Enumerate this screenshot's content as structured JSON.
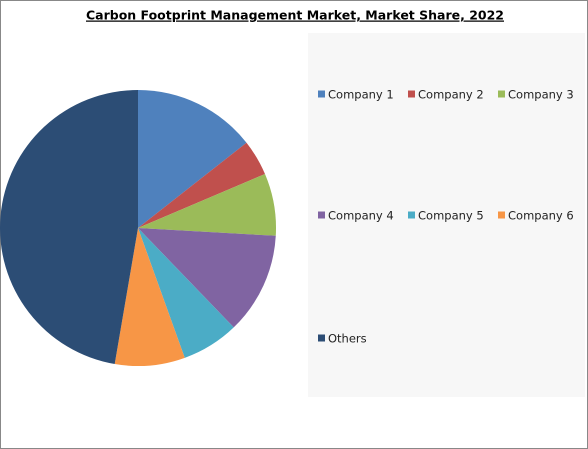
{
  "chart_data": {
    "type": "pie",
    "title": "Carbon Footprint Management Market, Market Share, 2022",
    "categories": [
      "Company 1",
      "Company 2",
      "Company 3",
      "Company 4",
      "Company 5",
      "Company 6",
      "Others"
    ],
    "values": [
      14.4,
      4.2,
      7.3,
      11.9,
      6.7,
      8.2,
      47.3
    ],
    "colors": [
      "#4f81bd",
      "#c0504d",
      "#9bbb59",
      "#8064a2",
      "#4bacc6",
      "#f79646",
      "#2c4d75"
    ],
    "legend": "right"
  }
}
